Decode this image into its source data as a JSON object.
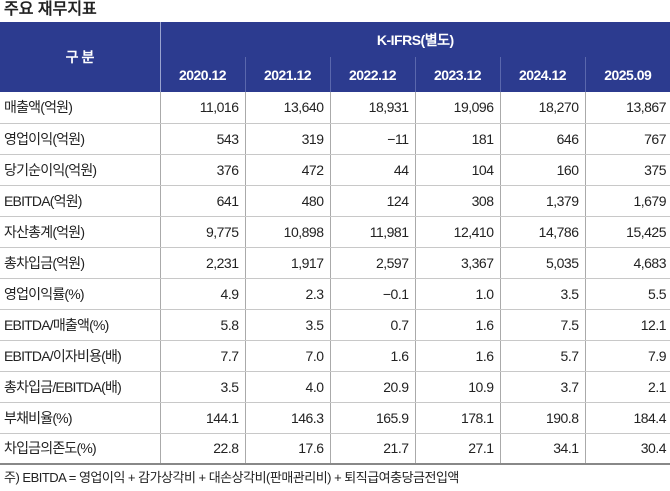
{
  "title": "주요 재무지표",
  "header": {
    "category": "구 분",
    "group": "K-IFRS(별도)",
    "periods": [
      "2020.12",
      "2021.12",
      "2022.12",
      "2023.12",
      "2024.12",
      "2025.09"
    ]
  },
  "rows": [
    {
      "label": "매출액(억원)",
      "values": [
        "11,016",
        "13,640",
        "18,931",
        "19,096",
        "18,270",
        "13,867"
      ]
    },
    {
      "label": "영업이익(억원)",
      "values": [
        "543",
        "319",
        "−11",
        "181",
        "646",
        "767"
      ]
    },
    {
      "label": "당기순이익(억원)",
      "values": [
        "376",
        "472",
        "44",
        "104",
        "160",
        "375"
      ]
    },
    {
      "label": "EBITDA(억원)",
      "values": [
        "641",
        "480",
        "124",
        "308",
        "1,379",
        "1,679"
      ]
    },
    {
      "label": "자산총계(억원)",
      "values": [
        "9,775",
        "10,898",
        "11,981",
        "12,410",
        "14,786",
        "15,425"
      ]
    },
    {
      "label": "총차입금(억원)",
      "values": [
        "2,231",
        "1,917",
        "2,597",
        "3,367",
        "5,035",
        "4,683"
      ]
    },
    {
      "label": "영업이익률(%)",
      "values": [
        "4.9",
        "2.3",
        "−0.1",
        "1.0",
        "3.5",
        "5.5"
      ]
    },
    {
      "label": "EBITDA/매출액(%)",
      "values": [
        "5.8",
        "3.5",
        "0.7",
        "1.6",
        "7.5",
        "12.1"
      ]
    },
    {
      "label": "EBITDA/이자비용(배)",
      "values": [
        "7.7",
        "7.0",
        "1.6",
        "1.6",
        "5.7",
        "7.9"
      ]
    },
    {
      "label": "총차입금/EBITDA(배)",
      "values": [
        "3.5",
        "4.0",
        "20.9",
        "10.9",
        "3.7",
        "2.1"
      ]
    },
    {
      "label": "부채비율(%)",
      "values": [
        "144.1",
        "146.3",
        "165.9",
        "178.1",
        "190.8",
        "184.4"
      ]
    },
    {
      "label": "차입금의존도(%)",
      "values": [
        "22.8",
        "17.6",
        "21.7",
        "27.1",
        "34.1",
        "30.4"
      ]
    }
  ],
  "note": "주) EBITDA = 영업이익 + 감가상각비 + 대손상각비(판매관리비) + 퇴직급여충당금전입액",
  "colors": {
    "header_bg": "#2c3b8f"
  }
}
